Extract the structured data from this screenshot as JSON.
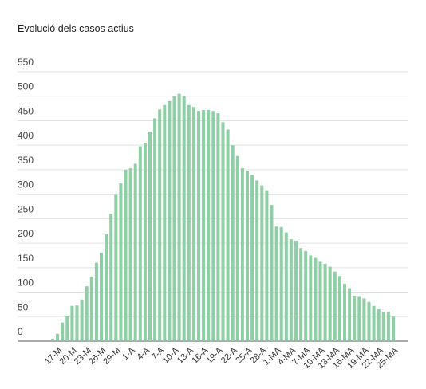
{
  "chart_data": {
    "type": "bar",
    "title": "Evolució dels casos actius",
    "categories": [
      null,
      "17-M",
      null,
      null,
      "20-M",
      null,
      null,
      "23-M",
      null,
      null,
      "26-M",
      null,
      null,
      "29-M",
      null,
      null,
      "1-A",
      null,
      null,
      "4-A",
      null,
      null,
      "7-A",
      null,
      null,
      "10-A",
      null,
      null,
      "13-A",
      null,
      null,
      "16-A",
      null,
      null,
      "19-A",
      null,
      null,
      "22-A",
      null,
      null,
      "25-A",
      null,
      null,
      "28-A",
      null,
      null,
      "1-MA",
      null,
      null,
      "4-MA",
      null,
      null,
      "7-MA",
      null,
      null,
      "10-MA",
      null,
      null,
      "13-MA",
      null,
      null,
      "16-MA",
      null,
      null,
      "19-MA",
      null,
      null,
      "22-MA",
      null,
      null,
      "25-MA"
    ],
    "values": [
      5,
      15,
      38,
      52,
      72,
      73,
      85,
      112,
      132,
      160,
      180,
      218,
      260,
      300,
      322,
      350,
      353,
      362,
      398,
      405,
      428,
      455,
      473,
      482,
      490,
      500,
      505,
      500,
      482,
      478,
      470,
      472,
      472,
      470,
      465,
      447,
      432,
      400,
      378,
      353,
      348,
      340,
      328,
      318,
      308,
      278,
      234,
      233,
      222,
      208,
      205,
      190,
      184,
      175,
      170,
      162,
      158,
      152,
      142,
      133,
      117,
      108,
      93,
      92,
      87,
      80,
      72,
      65,
      60,
      60,
      50
    ],
    "color": "#8ecfa5",
    "ylim": [
      0,
      550
    ],
    "yticks": [
      0,
      50,
      100,
      150,
      200,
      250,
      300,
      350,
      400,
      450,
      500,
      550
    ],
    "grid": true
  }
}
